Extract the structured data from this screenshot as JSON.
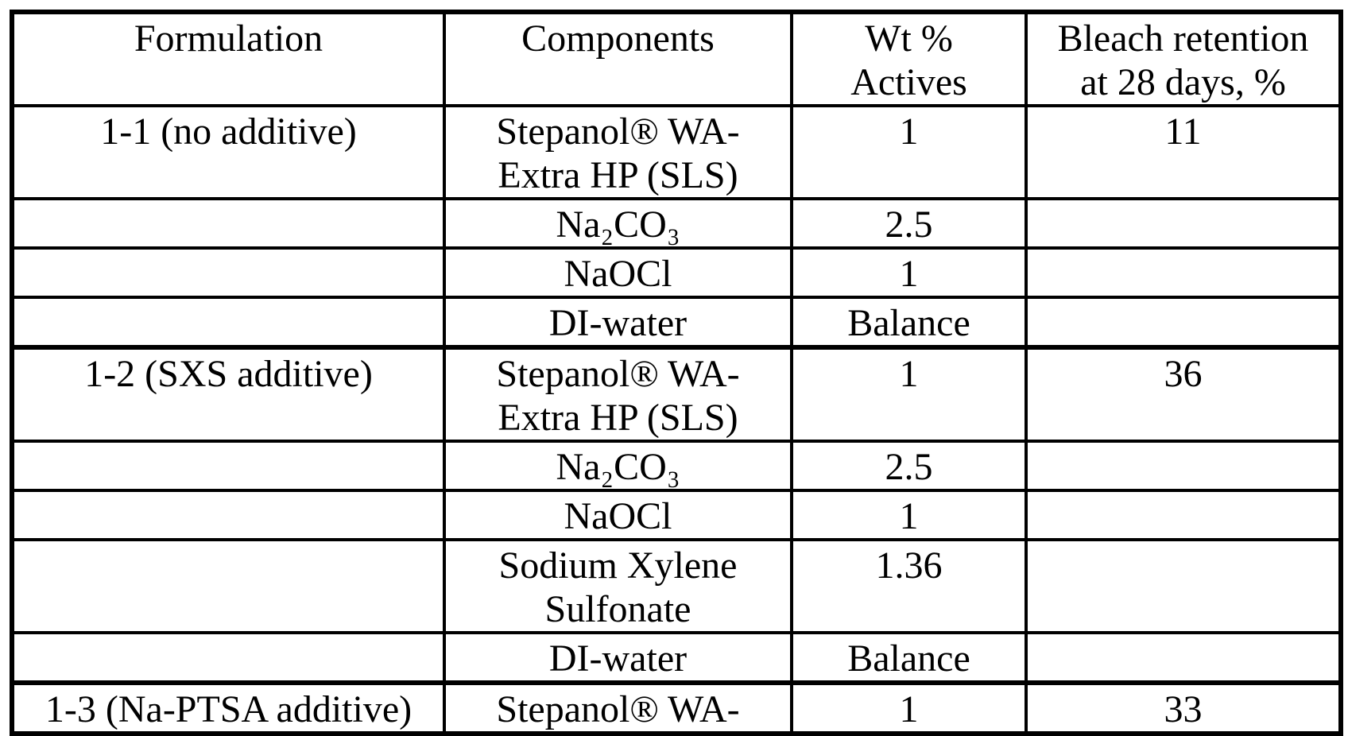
{
  "document": {
    "background_color": "#ffffff",
    "ink_color": "#000000",
    "kind": "scanned patent formulation table"
  },
  "table": {
    "headers": {
      "formulation": "Formulation",
      "components": "Components",
      "wt_actives": "Wt %\nActives",
      "bleach_retention": "Bleach retention\nat 28 days, %"
    },
    "rows": [
      {
        "formulation": "1-1 (no additive)",
        "component": "Stepanol® WA-\nExtra HP (SLS)",
        "wt": "1",
        "retention": "11"
      },
      {
        "formulation": "",
        "component": "Na₂CO₃",
        "wt": "2.5",
        "retention": ""
      },
      {
        "formulation": "",
        "component": "NaOCl",
        "wt": "1",
        "retention": ""
      },
      {
        "formulation": "",
        "component": "DI-water",
        "wt": "Balance",
        "retention": ""
      },
      {
        "formulation": "1-2 (SXS additive)",
        "component": "Stepanol® WA-\nExtra HP (SLS)",
        "wt": "1",
        "retention": "36"
      },
      {
        "formulation": "",
        "component": "Na₂CO₃",
        "wt": "2.5",
        "retention": ""
      },
      {
        "formulation": "",
        "component": "NaOCl",
        "wt": "1",
        "retention": ""
      },
      {
        "formulation": "",
        "component": "Sodium Xylene\nSulfonate",
        "wt": "1.36",
        "retention": ""
      },
      {
        "formulation": "",
        "component": "DI-water",
        "wt": "Balance",
        "retention": ""
      },
      {
        "formulation": "1-3 (Na-PTSA additive)",
        "component": "Stepanol® WA-",
        "wt": "1",
        "retention": "33"
      }
    ]
  }
}
